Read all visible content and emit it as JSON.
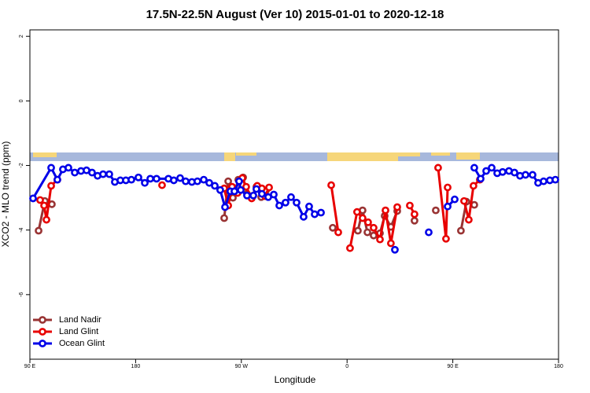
{
  "chart_data": {
    "type": "line",
    "title": "17.5N-22.5N August (Ver 10)   2015-01-01 to 2020-12-18",
    "xlabel": "Longitude",
    "ylabel": "XCO2 - MLO trend (ppm)",
    "xlim": [
      90,
      540
    ],
    "ylim": [
      -8,
      2.2
    ],
    "xticks": [
      {
        "value": 90,
        "label": "90 E"
      },
      180,
      {
        "value": 270,
        "label": "90 W"
      },
      {
        "value": 360,
        "label": "0"
      },
      {
        "value": 450,
        "label": "90 E"
      },
      {
        "value": 540,
        "label": "180"
      }
    ],
    "yticks": [
      2,
      0,
      -2,
      -4,
      -6
    ],
    "legend": "bottom-left",
    "series": [
      {
        "name": "Land Nadir",
        "color": "#993333",
        "x": [
          97.4,
          102.7,
          108.7,
          null,
          255.4,
          258.8,
          262.8,
          267.4,
          271.5,
          274.8,
          278.8,
          282.8,
          286.9,
          290.9,
          null,
          347.8,
          null,
          369.2,
          373.2,
          377.3,
          382.6,
          388.0,
          392.0,
          397.3,
          402.7,
          null,
          417.4,
          null,
          435.5,
          null,
          456.9,
          461.6,
          468.3
        ],
        "values": [
          -4.02,
          -3.1,
          -3.2,
          null,
          -3.63,
          -2.49,
          -3.0,
          -2.44,
          -2.37,
          -2.88,
          -2.98,
          -2.66,
          -2.98,
          -2.78,
          null,
          -3.93,
          null,
          -4.02,
          -3.39,
          -4.07,
          -4.17,
          -4.1,
          -3.56,
          -3.9,
          -3.41,
          null,
          -3.71,
          null,
          -3.39,
          null,
          -4.02,
          -3.12,
          -3.22
        ]
      },
      {
        "name": "Land Glint",
        "color": "#e80000",
        "x": [
          98.7,
          102.1,
          104.1,
          108.1,
          113.4,
          null,
          202.5,
          null,
          255.4,
          258.8,
          262.1,
          266.8,
          270.8,
          274.1,
          278.8,
          283.5,
          287.5,
          290.2,
          293.6,
          null,
          346.5,
          352.5,
          null,
          362.5,
          368.5,
          373.2,
          377.9,
          382.6,
          388.0,
          392.7,
          397.3,
          402.7,
          null,
          413.4,
          417.4,
          null,
          437.5,
          444.2,
          445.6,
          null,
          459.6,
          463.6,
          467.6,
          473.0
        ],
        "values": [
          -3.07,
          -3.24,
          -3.68,
          -2.63,
          -2.44,
          null,
          -2.61,
          null,
          -2.71,
          -3.24,
          -2.66,
          -2.85,
          -2.39,
          -2.66,
          -3.02,
          -2.63,
          -2.71,
          -2.95,
          -2.68,
          null,
          -2.61,
          -4.07,
          null,
          -4.56,
          -3.44,
          -3.63,
          -3.76,
          -3.93,
          -4.29,
          -3.39,
          -4.41,
          -3.29,
          null,
          -3.24,
          -3.51,
          null,
          -2.07,
          -4.27,
          -2.68,
          null,
          -3.1,
          -3.68,
          -2.63,
          -2.44
        ]
      },
      {
        "name": "Ocean Glint",
        "color": "#0000e8",
        "x": [
          92.7,
          108.1,
          113.4,
          118.1,
          122.8,
          128.2,
          133.5,
          138.2,
          142.9,
          147.6,
          152.3,
          157.6,
          162.3,
          167.0,
          171.7,
          176.4,
          182.4,
          187.8,
          192.5,
          197.8,
          207.9,
          212.5,
          217.9,
          222.6,
          227.9,
          232.6,
          238.0,
          242.7,
          247.4,
          252.0,
          256.1,
          260.7,
          264.1,
          268.1,
          269.5,
          274.8,
          280.2,
          282.8,
          287.5,
          292.9,
          297.6,
          302.3,
          307.6,
          312.3,
          317.0,
          323.0,
          327.7,
          332.4,
          337.8,
          null,
          400.7,
          null,
          429.5,
          null,
          445.6,
          451.6,
          null,
          468.3,
          473.7,
          478.4,
          483.1,
          487.8,
          492.4,
          497.8,
          502.5,
          507.2,
          511.9,
          517.9,
          522.6,
          527.3,
          532.6,
          537.3
        ],
        "values": [
          -3.02,
          -2.07,
          -2.44,
          -2.12,
          -2.07,
          -2.22,
          -2.17,
          -2.15,
          -2.22,
          -2.32,
          -2.27,
          -2.27,
          -2.51,
          -2.46,
          -2.46,
          -2.44,
          -2.37,
          -2.54,
          -2.41,
          -2.41,
          -2.41,
          -2.46,
          -2.39,
          -2.49,
          -2.51,
          -2.49,
          -2.44,
          -2.54,
          -2.63,
          -2.76,
          -3.29,
          -2.8,
          -2.8,
          -2.49,
          -2.76,
          -2.93,
          -2.93,
          -2.73,
          -2.88,
          -2.98,
          -2.9,
          -3.24,
          -3.15,
          -2.98,
          -3.15,
          -3.59,
          -3.27,
          -3.51,
          -3.46,
          null,
          -4.61,
          null,
          -4.07,
          null,
          -3.27,
          -3.05,
          null,
          -2.07,
          -2.41,
          -2.17,
          -2.07,
          -2.24,
          -2.2,
          -2.17,
          -2.22,
          -2.32,
          -2.29,
          -2.29,
          -2.54,
          -2.49,
          -2.46,
          -2.44
        ]
      }
    ]
  }
}
